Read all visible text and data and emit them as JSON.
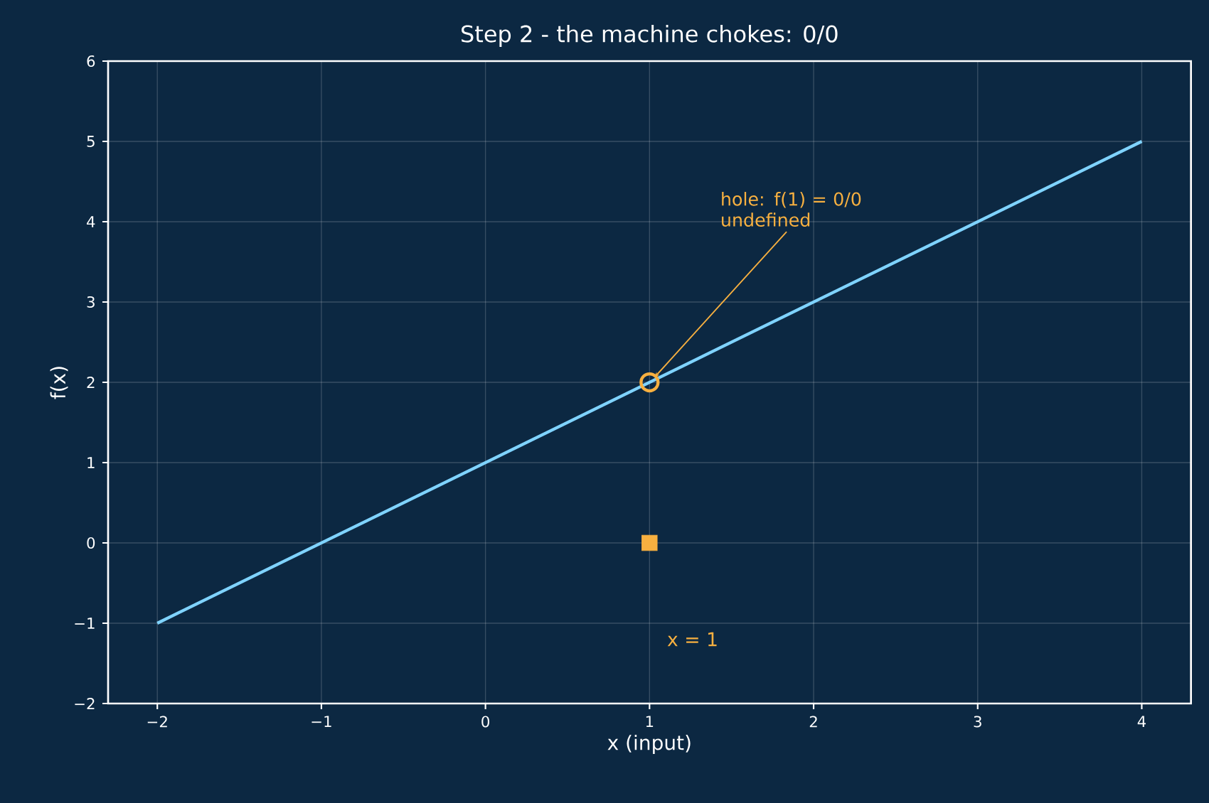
{
  "chart_data": {
    "type": "line",
    "title": "Step 2 - the machine chokes: 0/0",
    "xlabel": "x (input)",
    "ylabel": "f(x)",
    "series": [
      {
        "color": "#7fd3ff",
        "x": [
          -2,
          4
        ],
        "values": [
          -1,
          5
        ],
        "marker": "none"
      },
      {
        "type": "scatter",
        "color": "#f7b040",
        "x": [
          1
        ],
        "values": [
          2
        ],
        "marker": "circle"
      },
      {
        "type": "scatter",
        "color": "#f7b040",
        "x": [
          1
        ],
        "values": [
          0
        ],
        "marker": "square"
      }
    ],
    "annotations": [
      {
        "text": "hole: f(1) = 0/0 undefined",
        "x": 1,
        "y": 2
      },
      "x = 1"
    ],
    "xlim": [
      -2.3,
      4.3
    ],
    "ylim": [
      -2,
      6
    ],
    "xticks": [
      {
        "value": -2,
        "label": "−2"
      },
      {
        "value": -1,
        "label": "−1"
      },
      0,
      1,
      2,
      3,
      4
    ],
    "yticks": [
      {
        "value": -2,
        "label": "−2"
      },
      {
        "value": -1,
        "label": "−1"
      },
      0,
      1,
      2,
      3,
      4,
      5,
      6
    ],
    "grid": true,
    "line_style": "solid"
  }
}
